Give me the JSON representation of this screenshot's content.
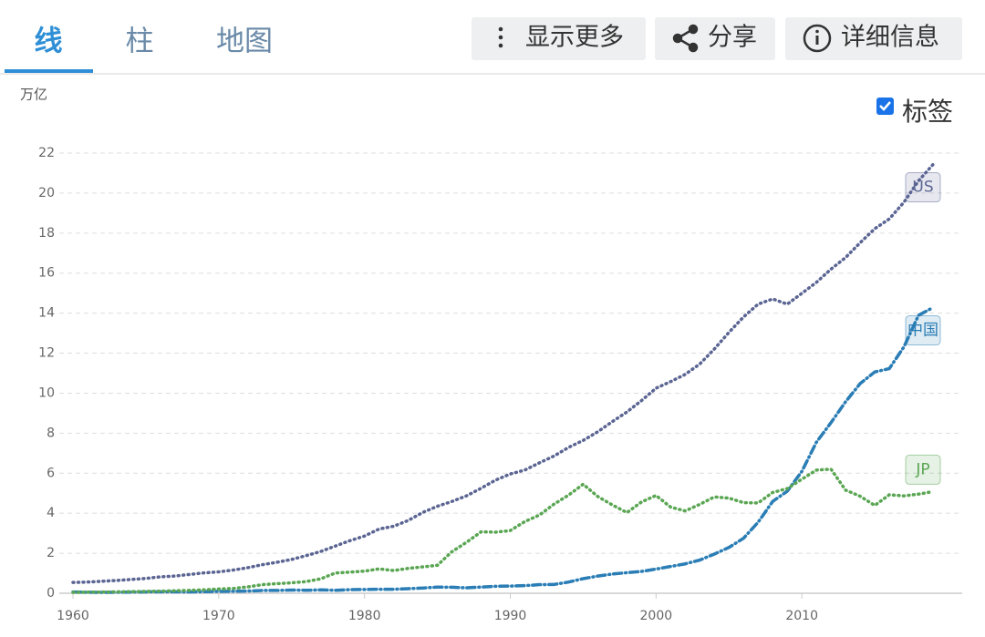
{
  "tabs": [
    "线",
    "柱",
    "地图"
  ],
  "buttons": [
    "显示更多",
    "分享",
    "详细信息"
  ],
  "label_toggle": "标签",
  "chart_data": {
    "type": "line",
    "y_unit": "万亿",
    "x": [
      1960,
      1961,
      1962,
      1963,
      1964,
      1965,
      1966,
      1967,
      1968,
      1969,
      1970,
      1971,
      1972,
      1973,
      1974,
      1975,
      1976,
      1977,
      1978,
      1979,
      1980,
      1981,
      1982,
      1983,
      1984,
      1985,
      1986,
      1987,
      1988,
      1989,
      1990,
      1991,
      1992,
      1993,
      1994,
      1995,
      1996,
      1997,
      1998,
      1999,
      2000,
      2001,
      2002,
      2003,
      2004,
      2005,
      2006,
      2007,
      2008,
      2009,
      2010,
      2011,
      2012,
      2013,
      2014,
      2015,
      2016,
      2017,
      2018,
      2019
    ],
    "series": [
      {
        "name": "US",
        "color": "#5b6593",
        "values": [
          0.54,
          0.56,
          0.6,
          0.64,
          0.69,
          0.74,
          0.82,
          0.86,
          0.94,
          1.02,
          1.07,
          1.16,
          1.28,
          1.43,
          1.55,
          1.69,
          1.88,
          2.09,
          2.36,
          2.63,
          2.86,
          3.21,
          3.35,
          3.64,
          4.04,
          4.35,
          4.59,
          4.87,
          5.25,
          5.66,
          5.96,
          6.16,
          6.52,
          6.86,
          7.29,
          7.64,
          8.07,
          8.58,
          9.06,
          9.63,
          10.25,
          10.58,
          10.94,
          11.46,
          12.21,
          13.04,
          13.81,
          14.45,
          14.71,
          14.45,
          14.99,
          15.54,
          16.2,
          16.78,
          17.52,
          18.22,
          18.71,
          19.54,
          20.61,
          21.43
        ]
      },
      {
        "name": "中国",
        "color": "#2a7db5",
        "values": [
          0.06,
          0.05,
          0.047,
          0.051,
          0.059,
          0.07,
          0.076,
          0.072,
          0.07,
          0.079,
          0.093,
          0.1,
          0.11,
          0.14,
          0.14,
          0.16,
          0.15,
          0.17,
          0.15,
          0.18,
          0.19,
          0.2,
          0.2,
          0.23,
          0.26,
          0.31,
          0.3,
          0.27,
          0.31,
          0.35,
          0.36,
          0.38,
          0.43,
          0.44,
          0.56,
          0.73,
          0.86,
          0.96,
          1.03,
          1.09,
          1.21,
          1.34,
          1.47,
          1.66,
          1.96,
          2.29,
          2.75,
          3.55,
          4.59,
          5.1,
          6.09,
          7.55,
          8.53,
          9.57,
          10.48,
          11.06,
          11.23,
          12.31,
          13.89,
          14.28
        ]
      },
      {
        "name": "JP",
        "color": "#5aa653",
        "values": [
          0.044,
          0.054,
          0.061,
          0.07,
          0.082,
          0.091,
          0.106,
          0.124,
          0.147,
          0.172,
          0.213,
          0.24,
          0.318,
          0.432,
          0.48,
          0.522,
          0.585,
          0.722,
          1.013,
          1.055,
          1.105,
          1.218,
          1.135,
          1.244,
          1.319,
          1.398,
          2.079,
          2.549,
          3.072,
          3.054,
          3.133,
          3.584,
          3.909,
          4.454,
          4.907,
          5.449,
          4.834,
          4.415,
          4.033,
          4.562,
          4.888,
          4.304,
          4.115,
          4.445,
          4.815,
          4.755,
          4.53,
          4.515,
          5.038,
          5.231,
          5.7,
          6.157,
          6.203,
          5.156,
          4.85,
          4.389,
          4.923,
          4.867,
          4.955,
          5.082
        ]
      }
    ],
    "xlim": [
      1960,
      2021
    ],
    "xticks": [
      1960,
      1970,
      1980,
      1990,
      2000,
      2010
    ],
    "ylim": [
      0,
      22
    ],
    "yticks": [
      0,
      2,
      4,
      6,
      8,
      10,
      12,
      14,
      16,
      18,
      20,
      22
    ],
    "grid": true,
    "labels_on": true
  }
}
